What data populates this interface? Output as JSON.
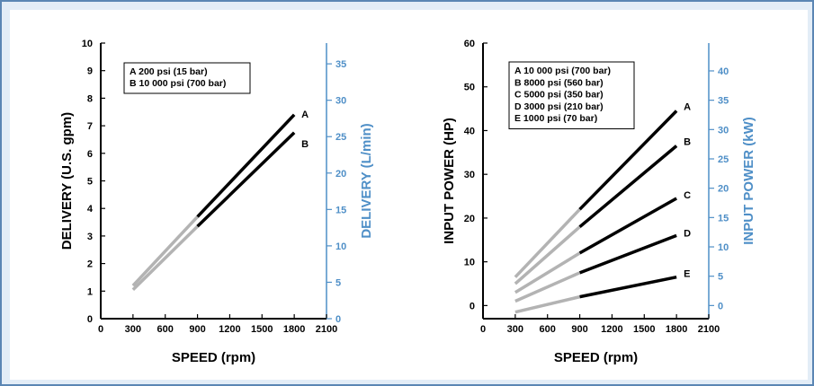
{
  "chart_data": [
    {
      "type": "line",
      "xlabel": "SPEED (rpm)",
      "ylabel": "DELIVERY (U.S. gpm)",
      "y2label": "DELIVERY (L/min)",
      "xlim": [
        0,
        2100
      ],
      "ylim": [
        0,
        10
      ],
      "y2lim": [
        0,
        37.85
      ],
      "x_ticks": [
        0,
        300,
        600,
        900,
        1200,
        1500,
        1800,
        2100
      ],
      "y_ticks": [
        0,
        1,
        2,
        3,
        4,
        5,
        6,
        7,
        8,
        9,
        10
      ],
      "y2_ticks": [
        0,
        5,
        10,
        15,
        20,
        25,
        30,
        35
      ],
      "legend": [
        "A   200 psi   (15 bar)",
        "B   10 000 psi   (700 bar)"
      ],
      "legend_position": "top-left",
      "series": [
        {
          "name": "A",
          "x": [
            300,
            900,
            1800
          ],
          "y": [
            1.2,
            3.7,
            7.4
          ]
        },
        {
          "name": "B",
          "x": [
            300,
            900,
            1800
          ],
          "y": [
            1.05,
            3.35,
            6.75
          ]
        }
      ],
      "colors": {
        "low_speed_segment": "#b3b3b3",
        "main_segment": "#000000",
        "secondary_axis": "#4f8fc7"
      }
    },
    {
      "type": "line",
      "xlabel": "SPEED (rpm)",
      "ylabel": "INPUT POWER (HP)",
      "y2label": "INPUT POWER (kW)",
      "xlim": [
        0,
        2100
      ],
      "ylim": [
        -3,
        60
      ],
      "y2lim": [
        -2.24,
        44.74
      ],
      "x_ticks": [
        0,
        300,
        600,
        900,
        1200,
        1500,
        1800,
        2100
      ],
      "y_ticks": [
        0,
        10,
        20,
        30,
        40,
        50,
        60
      ],
      "y2_ticks": [
        0,
        5,
        10,
        15,
        20,
        25,
        30,
        35,
        40
      ],
      "legend": [
        "A   10 000 psi   (700 bar)",
        "B   8000 psi   (560 bar)",
        "C   5000 psi   (350 bar)",
        "D   3000 psi   (210 bar)",
        "E   1000 psi   (70 bar)"
      ],
      "legend_position": "top-left",
      "series": [
        {
          "name": "A",
          "x": [
            300,
            900,
            1800
          ],
          "y": [
            6.5,
            22,
            44.5
          ]
        },
        {
          "name": "B",
          "x": [
            300,
            900,
            1800
          ],
          "y": [
            5,
            18,
            36.5
          ]
        },
        {
          "name": "C",
          "x": [
            300,
            900,
            1800
          ],
          "y": [
            3,
            12,
            24.5
          ]
        },
        {
          "name": "D",
          "x": [
            300,
            900,
            1800
          ],
          "y": [
            1,
            7.5,
            16
          ]
        },
        {
          "name": "E",
          "x": [
            300,
            900,
            1800
          ],
          "y": [
            -1.5,
            2,
            6.5
          ]
        }
      ],
      "colors": {
        "low_speed_segment": "#b3b3b3",
        "main_segment": "#000000",
        "secondary_axis": "#4f8fc7"
      }
    }
  ]
}
